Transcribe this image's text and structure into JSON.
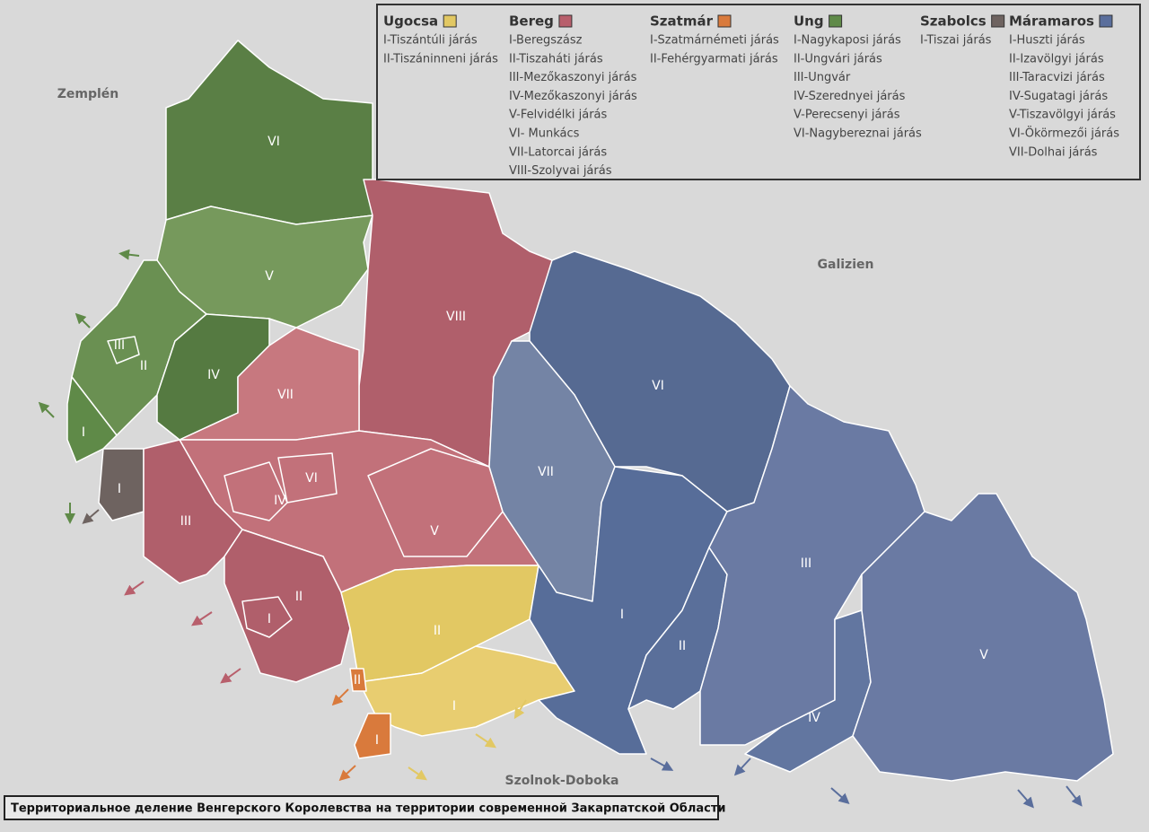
{
  "caption": "Территориальное деление Венгерского Королевства на территории современной Закарпатской Области",
  "neighbors": [
    "Zemplén",
    "Galizien",
    "Szolnok-Doboka"
  ],
  "legend": [
    {
      "name": "Ugocsa",
      "color": "#e2c863",
      "items": [
        "I-Tiszántúli járás",
        "II-Tiszáninneni járás"
      ]
    },
    {
      "name": "Bereg",
      "color": "#b85f6c",
      "items": [
        "I-Beregszász",
        "II-Tiszaháti járás",
        "III-Mezőkaszonyi járás",
        "IV-Mezőkaszonyi járás",
        "V-Felvidélki járás",
        "VI- Munkács",
        "VII-Latorcai járás",
        "VIII-Szolyvai járás"
      ]
    },
    {
      "name": "Szatmár",
      "color": "#d97a3c",
      "items": [
        "I-Szatmárnémeti járás",
        "II-Fehérgyarmati járás"
      ]
    },
    {
      "name": "Ung",
      "color": "#5f8a48",
      "items": [
        "I-Nagykaposi járás",
        "II-Ungvári járás",
        "III-Ungvár",
        "IV-Szerednyei járás",
        "V-Perecsenyi járás",
        "VI-Nagybereznai járás"
      ]
    },
    {
      "name": "Szabolcs",
      "color": "#6e6360",
      "items": [
        "I-Tiszai járás"
      ]
    },
    {
      "name": "Máramaros",
      "color": "#5a6e9c",
      "items": [
        "I-Huszti járás",
        "II-Izavölgyi járás",
        "III-Taracvizi járás",
        "IV-Sugatagi járás",
        "V-Tiszavölgyi járás",
        "VI-Ökörmezői járás",
        "VII-Dolhai járás"
      ]
    }
  ],
  "regions": [
    "VI",
    "V",
    "II",
    "III",
    "IV",
    "I",
    "I",
    "VIII",
    "VII",
    "VI",
    "IV",
    "V",
    "III",
    "II",
    "I",
    "II",
    "I",
    "I",
    "II",
    "VI",
    "VII",
    "I",
    "II",
    "III",
    "IV",
    "V"
  ]
}
